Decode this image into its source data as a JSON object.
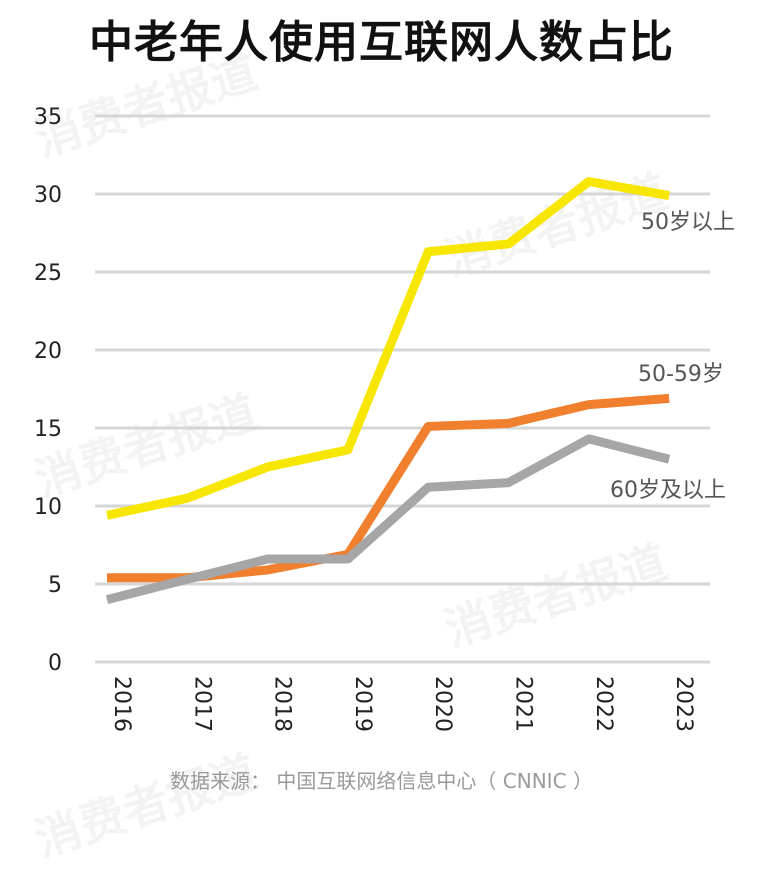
{
  "title": "中老年人使用互联网人数占比",
  "source": "数据来源：  中国互联网络信息中心（ CNNIC ）",
  "watermark": "消费者报道",
  "chart_data": {
    "type": "line",
    "x": [
      "2016",
      "2017",
      "2018",
      "2019",
      "2020",
      "2021",
      "2022",
      "2023"
    ],
    "ylim": [
      0,
      35
    ],
    "yticks": [
      0,
      5,
      10,
      15,
      20,
      25,
      30,
      35
    ],
    "grid": true,
    "series": [
      {
        "name": "50岁以上",
        "color": "#f7e600",
        "values": [
          9.4,
          10.5,
          12.5,
          13.6,
          26.3,
          26.8,
          30.8,
          29.9
        ]
      },
      {
        "name": "50-59岁",
        "color": "#f07f2e",
        "values": [
          5.4,
          5.4,
          5.9,
          6.9,
          15.1,
          15.3,
          16.5,
          16.9
        ]
      },
      {
        "name": "60岁及以上",
        "color": "#a6a6a6",
        "values": [
          4.0,
          5.3,
          6.6,
          6.6,
          11.2,
          11.5,
          14.3,
          13.0
        ]
      }
    ]
  }
}
